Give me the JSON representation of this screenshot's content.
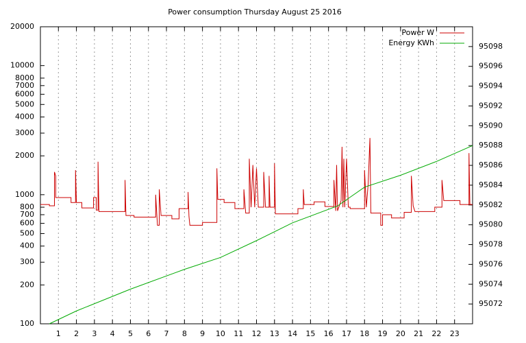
{
  "chart_data": {
    "type": "line",
    "title": "Power consumption Thursday August 25 2016",
    "xlim": [
      0,
      24
    ],
    "xticks": [
      1,
      2,
      3,
      4,
      5,
      6,
      7,
      8,
      9,
      10,
      11,
      12,
      13,
      14,
      15,
      16,
      17,
      18,
      19,
      20,
      21,
      22,
      23
    ],
    "ylim": [
      100,
      20000
    ],
    "log_y": true,
    "yticks": [
      100,
      200,
      300,
      400,
      500,
      600,
      700,
      800,
      1000,
      2000,
      3000,
      4000,
      5000,
      6000,
      7000,
      8000,
      10000,
      20000
    ],
    "y2lim": [
      95070,
      95100
    ],
    "y2ticks": [
      95072,
      95074,
      95076,
      95078,
      95080,
      95082,
      95084,
      95086,
      95088,
      95090,
      95092,
      95094,
      95096,
      95098
    ],
    "grid": "x",
    "legend": "top-right",
    "series": [
      {
        "name": "Power W",
        "color": "#cc0000",
        "x": [
          0,
          0.5,
          0.5,
          0.78,
          0.78,
          0.85,
          0.85,
          1.7,
          1.7,
          1.95,
          1.95,
          2.0,
          2.3,
          2.3,
          2.95,
          2.95,
          3.1,
          3.1,
          3.2,
          3.2,
          3.25,
          4.7,
          4.7,
          4.75,
          5.2,
          5.2,
          6.4,
          6.4,
          6.5,
          6.6,
          6.6,
          6.7,
          7.3,
          7.3,
          7.7,
          7.7,
          8.2,
          8.2,
          8.25,
          8.3,
          9.0,
          9.0,
          9.8,
          9.8,
          9.85,
          10.2,
          10.2,
          10.8,
          10.8,
          11.3,
          11.3,
          11.4,
          11.6,
          11.6,
          11.7,
          11.8,
          11.9,
          12.0,
          12.1,
          12.4,
          12.4,
          12.5,
          12.7,
          12.7,
          12.75,
          13.0,
          13.0,
          13.05,
          14.3,
          14.3,
          14.6,
          14.6,
          14.65,
          15.2,
          15.2,
          15.8,
          15.8,
          16.3,
          16.3,
          16.4,
          16.45,
          16.5,
          16.7,
          16.75,
          16.8,
          16.85,
          16.9,
          17.0,
          17.1,
          17.2,
          17.2,
          18.0,
          18.0,
          18.1,
          18.2,
          18.3,
          18.35,
          18.9,
          18.9,
          19.0,
          19.0,
          19.5,
          19.5,
          20.2,
          20.2,
          20.6,
          20.6,
          20.7,
          20.8,
          21.9,
          21.9,
          22.3,
          22.3,
          22.4,
          23.3,
          23.3,
          23.8,
          23.8,
          23.85,
          24
        ],
        "values": [
          840,
          840,
          820,
          820,
          1500,
          1400,
          950,
          950,
          870,
          870,
          1550,
          870,
          870,
          790,
          790,
          950,
          950,
          760,
          760,
          1800,
          740,
          740,
          1300,
          690,
          690,
          670,
          670,
          1000,
          580,
          580,
          1100,
          690,
          690,
          650,
          650,
          780,
          780,
          1050,
          680,
          580,
          580,
          610,
          610,
          1600,
          920,
          920,
          870,
          870,
          780,
          780,
          1100,
          720,
          720,
          1900,
          800,
          1700,
          800,
          1600,
          800,
          800,
          1500,
          800,
          800,
          1400,
          800,
          800,
          1750,
          710,
          710,
          780,
          780,
          1100,
          840,
          840,
          880,
          880,
          810,
          810,
          1300,
          750,
          1700,
          750,
          900,
          2350,
          800,
          1900,
          800,
          1900,
          800,
          800,
          780,
          780,
          1550,
          800,
          1200,
          2750,
          720,
          720,
          580,
          580,
          700,
          700,
          660,
          660,
          730,
          730,
          1400,
          820,
          740,
          740,
          800,
          800,
          1300,
          900,
          900,
          840,
          840,
          2100,
          840,
          840
        ]
      },
      {
        "name": "Energy KWh",
        "color": "#00aa00",
        "axis": "y2",
        "x": [
          0.5,
          2,
          5,
          8,
          10,
          12,
          14,
          16.5,
          18,
          20,
          22,
          24
        ],
        "values": [
          95070,
          95071.3,
          95073.5,
          95075.5,
          95076.7,
          95078.4,
          95080.2,
          95081.9,
          95083.8,
          95085.0,
          95086.4,
          95088.0
        ]
      }
    ]
  }
}
